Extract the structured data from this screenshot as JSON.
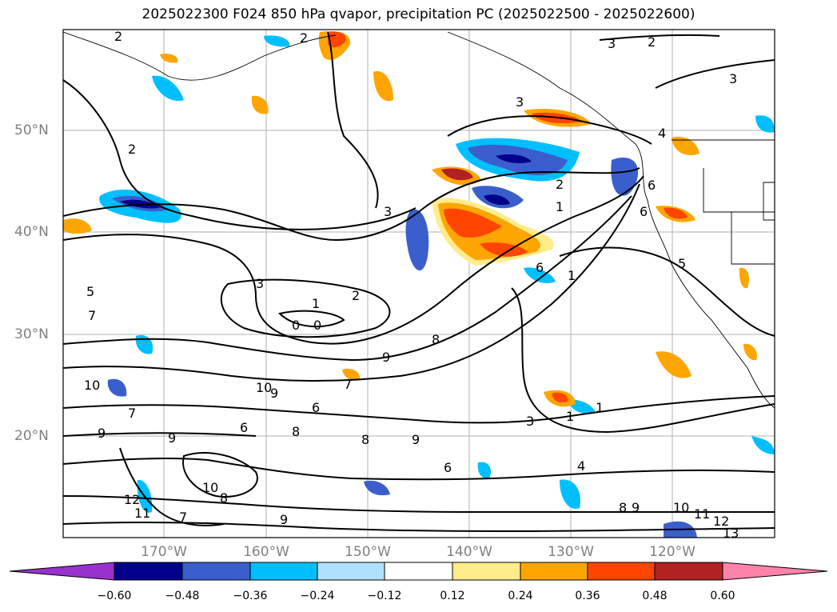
{
  "title": "2025022300 F024 850 hPa qvapor, precipitation PC (2025022500 - 2025022600)",
  "map": {
    "lat_labels": [
      "50°N",
      "40°N",
      "30°N",
      "20°N"
    ],
    "lon_labels": [
      "170°W",
      "160°W",
      "150°W",
      "140°W",
      "130°W",
      "120°W"
    ],
    "contour_labels": [
      "2",
      "2",
      "2",
      "3",
      "2",
      "3",
      "3",
      "4",
      "6",
      "6",
      "3",
      "1",
      "1",
      "0",
      "0",
      "2",
      "3",
      "1",
      "2",
      "6",
      "8",
      "9",
      "10",
      "9",
      "10",
      "7",
      "6",
      "8",
      "8",
      "9",
      "6",
      "7",
      "9",
      "9",
      "6",
      "4",
      "3",
      "1",
      "1",
      "12",
      "11",
      "10",
      "8",
      "10",
      "11",
      "12",
      "13",
      "5",
      "5",
      "7",
      "8",
      "9",
      "9",
      "7"
    ]
  },
  "colorbar": {
    "ticks": [
      "−0.60",
      "−0.48",
      "−0.36",
      "−0.24",
      "−0.12",
      "0.12",
      "0.24",
      "0.36",
      "0.48",
      "0.60"
    ],
    "colors": [
      "#9932cc",
      "#00008b",
      "#3a5fcd",
      "#00bfff",
      "#b0e2ff",
      "#ffffff",
      "#ffec8b",
      "#ffa500",
      "#ff4500",
      "#b22222",
      "#ff82ab"
    ]
  },
  "fills": {
    "dark_blue": "#00008b",
    "mid_blue": "#3a5fcd",
    "deep_sky": "#00bfff",
    "light_blue": "#b0e2ff",
    "light_yellow": "#ffec8b",
    "orange": "#ffa500",
    "orange_red": "#ff4500",
    "firebrick": "#b22222"
  }
}
